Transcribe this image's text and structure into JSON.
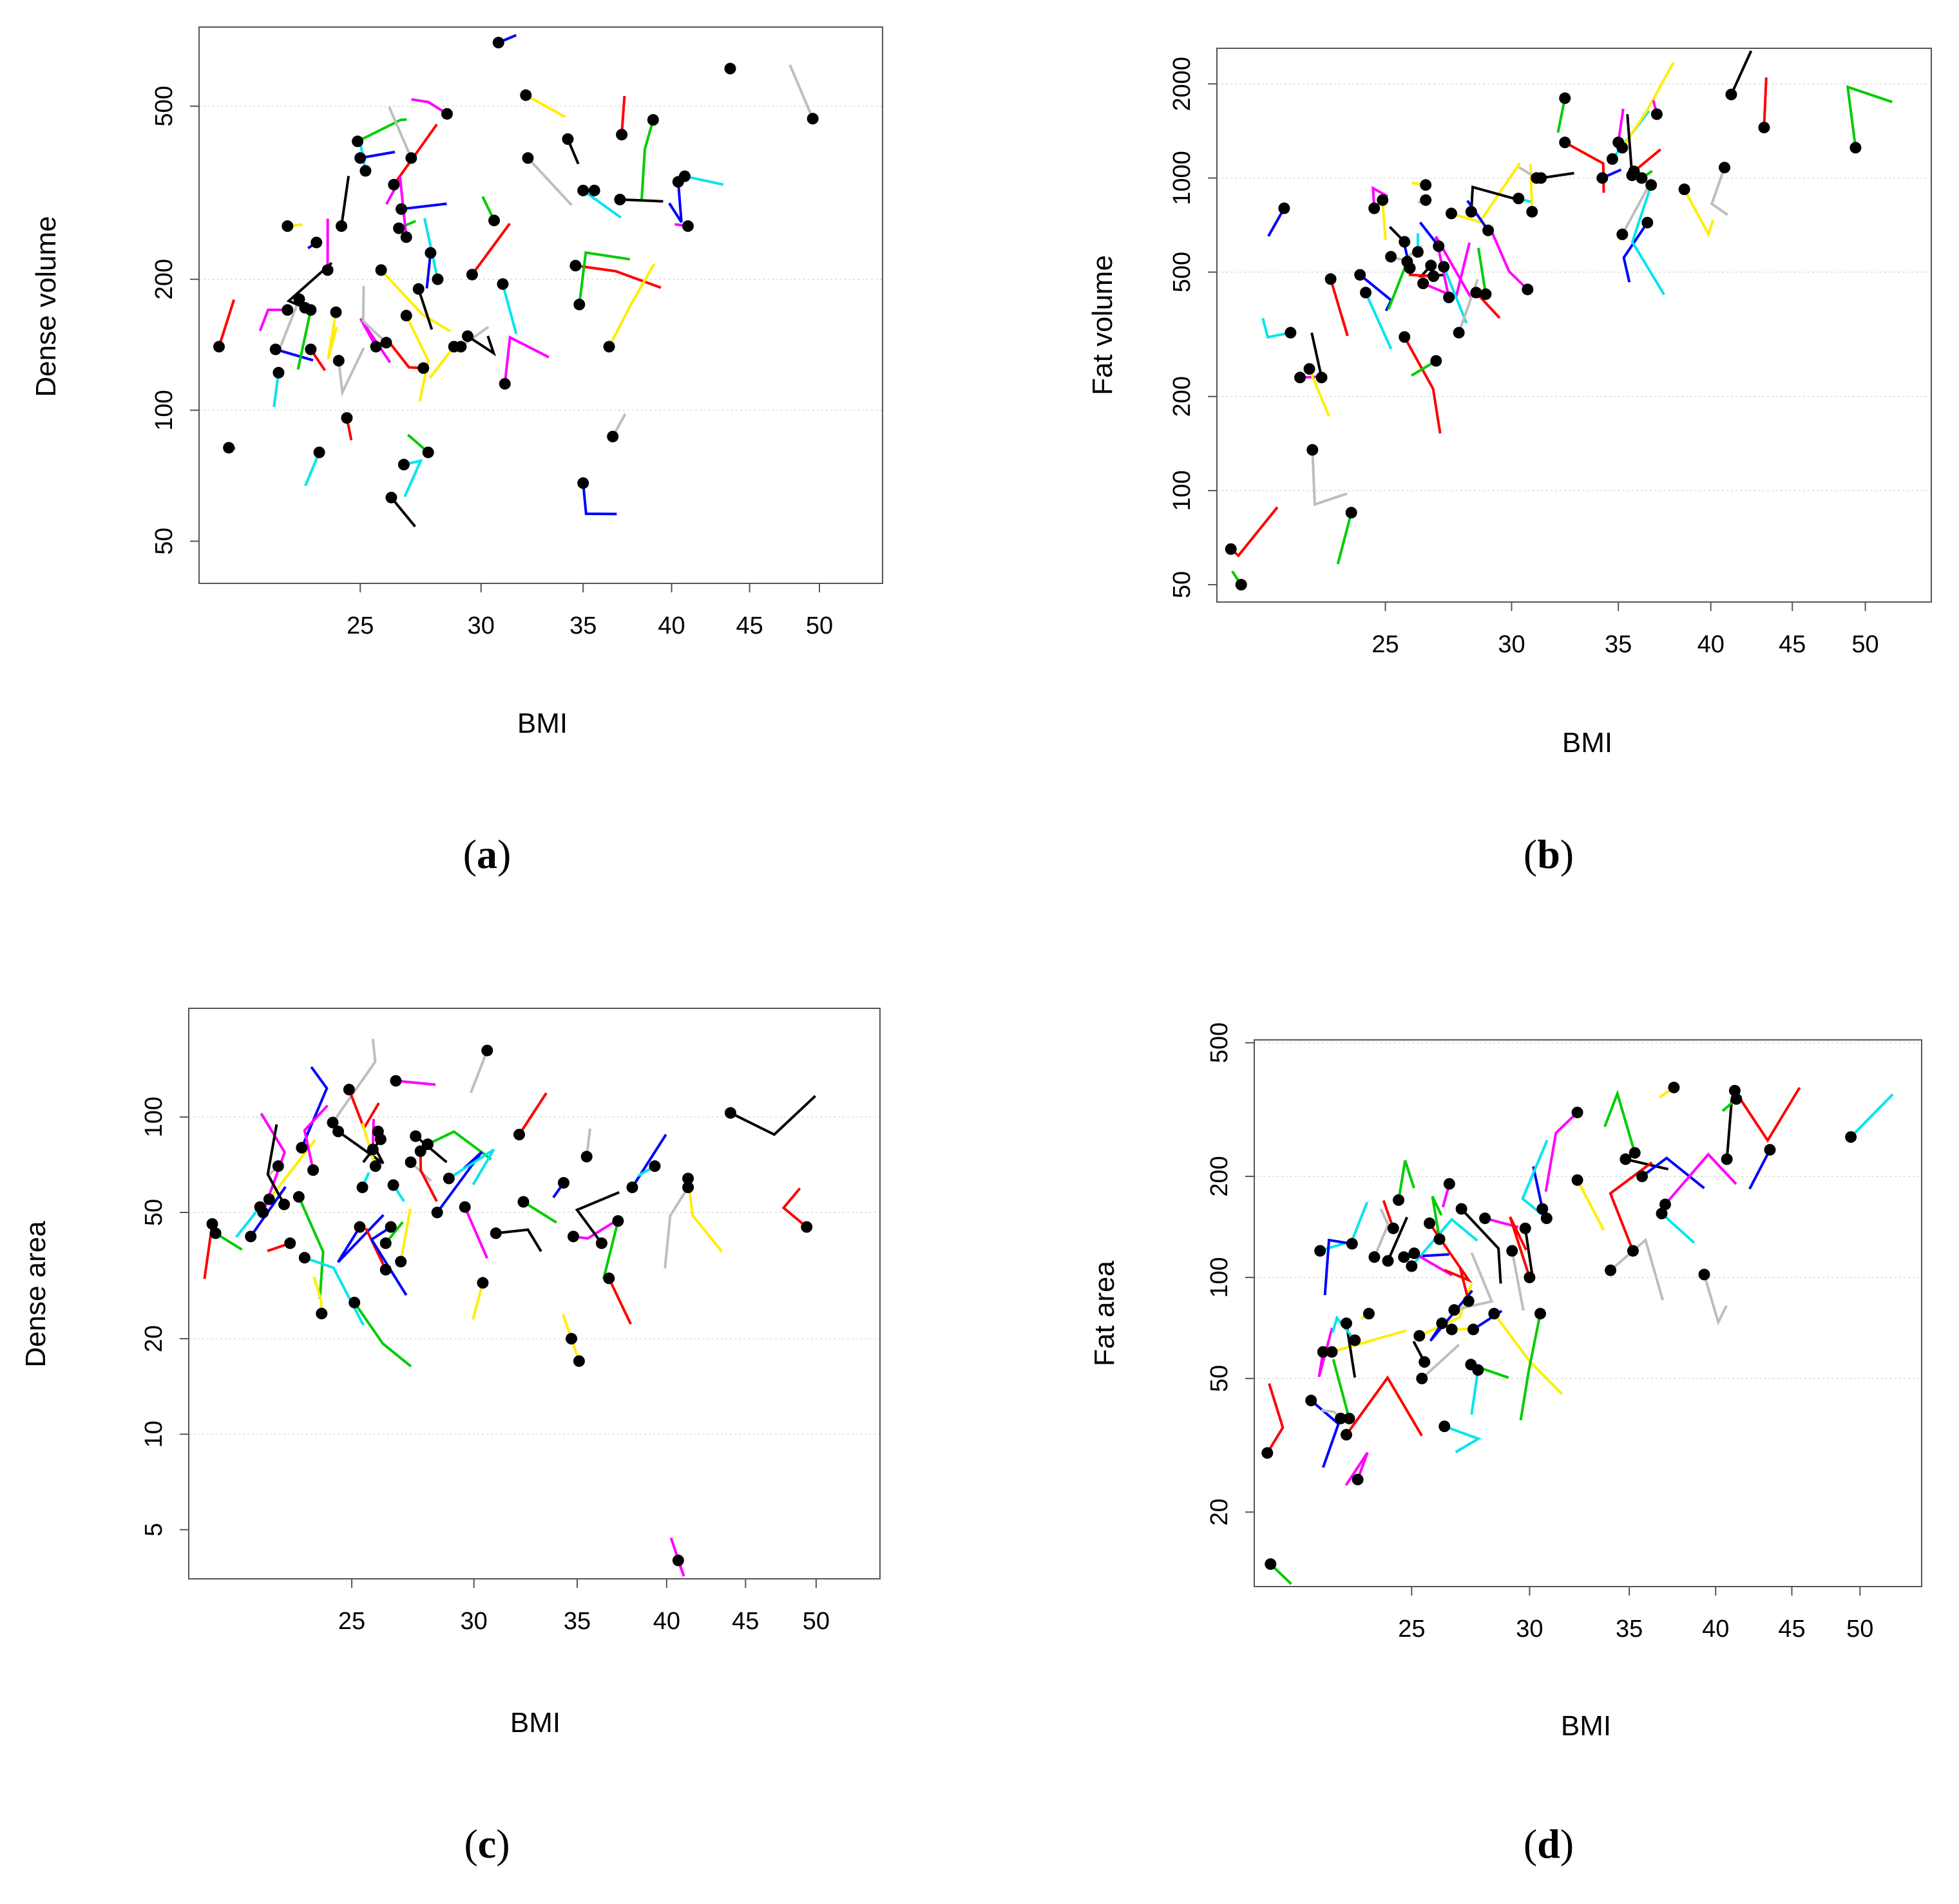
{
  "figure": {
    "panels": [
      "(a)",
      "(b)",
      "(c)",
      "(d)"
    ]
  },
  "chart_data": [
    {
      "type": "scatter",
      "label_open": "(",
      "label_letter": "a",
      "label_close": ")",
      "xlabel": "BMI",
      "ylabel": "Dense volume",
      "xscale": "log",
      "yscale": "log",
      "xlim": [
        19.6,
        55
      ],
      "ylim": [
        40,
        760
      ],
      "xticks": [
        25,
        30,
        35,
        40,
        45,
        50
      ],
      "yticks": [
        50,
        100,
        200,
        500
      ],
      "grid": true,
      "points": [
        [
          20.2,
          140
        ],
        [
          20.5,
          82
        ],
        [
          22.0,
          138
        ],
        [
          22.1,
          122
        ],
        [
          22.4,
          170
        ],
        [
          22.4,
          265
        ],
        [
          22.8,
          180
        ],
        [
          23.0,
          172
        ],
        [
          23.2,
          138
        ],
        [
          23.2,
          170
        ],
        [
          23.4,
          243
        ],
        [
          23.5,
          80
        ],
        [
          23.8,
          210
        ],
        [
          24.1,
          168
        ],
        [
          24.2,
          130
        ],
        [
          24.3,
          265
        ],
        [
          24.5,
          96
        ],
        [
          24.9,
          415
        ],
        [
          25.0,
          380
        ],
        [
          25.2,
          355
        ],
        [
          25.6,
          140
        ],
        [
          25.8,
          210
        ],
        [
          26.0,
          143
        ],
        [
          26.2,
          63
        ],
        [
          26.3,
          330
        ],
        [
          26.5,
          262
        ],
        [
          26.6,
          290
        ],
        [
          26.7,
          75
        ],
        [
          26.8,
          250
        ],
        [
          26.8,
          165
        ],
        [
          27.0,
          380
        ],
        [
          27.3,
          190
        ],
        [
          27.5,
          125
        ],
        [
          27.7,
          80
        ],
        [
          27.8,
          230
        ],
        [
          28.1,
          200
        ],
        [
          28.5,
          480
        ],
        [
          28.8,
          140
        ],
        [
          29.1,
          140
        ],
        [
          29.4,
          148
        ],
        [
          29.6,
          205
        ],
        [
          30.6,
          273
        ],
        [
          30.8,
          700
        ],
        [
          31.0,
          195
        ],
        [
          31.1,
          115
        ],
        [
          32.1,
          530
        ],
        [
          32.2,
          380
        ],
        [
          34.2,
          420
        ],
        [
          34.6,
          215
        ],
        [
          34.8,
          175
        ],
        [
          35.0,
          68
        ],
        [
          35.0,
          320
        ],
        [
          35.6,
          320
        ],
        [
          36.4,
          140
        ],
        [
          36.6,
          87
        ],
        [
          37.0,
          305
        ],
        [
          37.1,
          430
        ],
        [
          38.9,
          465
        ],
        [
          40.4,
          335
        ],
        [
          40.8,
          345
        ],
        [
          41.0,
          265
        ],
        [
          43.7,
          610
        ],
        [
          49.5,
          468
        ]
      ]
    },
    {
      "type": "scatter",
      "label_open": "(",
      "label_letter": "b",
      "label_close": ")",
      "xlabel": "BMI",
      "ylabel": "Fat volume",
      "xscale": "log",
      "yscale": "log",
      "xlim": [
        19.6,
        55
      ],
      "ylim": [
        44,
        2600
      ],
      "xticks": [
        25,
        30,
        35,
        40,
        45,
        50
      ],
      "yticks": [
        50,
        100,
        200,
        500,
        1000,
        2000
      ],
      "grid": true,
      "points": [
        [
          20.0,
          65
        ],
        [
          20.3,
          50
        ],
        [
          21.6,
          800
        ],
        [
          21.8,
          320
        ],
        [
          22.1,
          230
        ],
        [
          22.4,
          245
        ],
        [
          22.5,
          135
        ],
        [
          22.8,
          230
        ],
        [
          23.1,
          475
        ],
        [
          23.8,
          85
        ],
        [
          24.1,
          490
        ],
        [
          24.3,
          430
        ],
        [
          24.6,
          800
        ],
        [
          24.9,
          850
        ],
        [
          25.2,
          560
        ],
        [
          25.7,
          625
        ],
        [
          25.7,
          310
        ],
        [
          25.8,
          540
        ],
        [
          25.9,
          515
        ],
        [
          26.2,
          580
        ],
        [
          26.4,
          460
        ],
        [
          26.5,
          950
        ],
        [
          26.5,
          850
        ],
        [
          26.7,
          525
        ],
        [
          26.8,
          485
        ],
        [
          26.9,
          260
        ],
        [
          27.0,
          605
        ],
        [
          27.2,
          520
        ],
        [
          27.4,
          415
        ],
        [
          27.5,
          770
        ],
        [
          27.8,
          320
        ],
        [
          28.3,
          780
        ],
        [
          28.5,
          430
        ],
        [
          28.9,
          425
        ],
        [
          29.0,
          680
        ],
        [
          30.3,
          860
        ],
        [
          30.7,
          440
        ],
        [
          30.9,
          780
        ],
        [
          31.1,
          1000
        ],
        [
          31.3,
          1000
        ],
        [
          32.4,
          1300
        ],
        [
          32.4,
          1800
        ],
        [
          34.2,
          1000
        ],
        [
          34.7,
          1150
        ],
        [
          35.0,
          1300
        ],
        [
          35.2,
          1250
        ],
        [
          35.2,
          660
        ],
        [
          35.7,
          1020
        ],
        [
          35.8,
          1050
        ],
        [
          36.2,
          1000
        ],
        [
          36.5,
          720
        ],
        [
          36.7,
          950
        ],
        [
          37.0,
          1600
        ],
        [
          38.5,
          920
        ],
        [
          40.8,
          1080
        ],
        [
          41.2,
          1850
        ],
        [
          43.2,
          1450
        ],
        [
          49.3,
          1250
        ]
      ]
    },
    {
      "type": "scatter",
      "label_open": "(",
      "label_letter": "c",
      "label_close": ")",
      "xlabel": "BMI",
      "ylabel": "Dense area",
      "xscale": "log",
      "yscale": "log",
      "xlim": [
        19.6,
        55
      ],
      "ylim": [
        3.5,
        220
      ],
      "xticks": [
        25,
        30,
        35,
        40,
        45,
        50
      ],
      "yticks": [
        5,
        10,
        20,
        50,
        100
      ],
      "grid": true,
      "points": [
        [
          20.3,
          46
        ],
        [
          20.4,
          43
        ],
        [
          21.5,
          42
        ],
        [
          21.8,
          52
        ],
        [
          21.9,
          50
        ],
        [
          22.1,
          55
        ],
        [
          22.4,
          70
        ],
        [
          22.6,
          53
        ],
        [
          22.8,
          40
        ],
        [
          23.1,
          56
        ],
        [
          23.2,
          80
        ],
        [
          23.3,
          36
        ],
        [
          23.6,
          68
        ],
        [
          23.9,
          24
        ],
        [
          24.3,
          96
        ],
        [
          24.5,
          90
        ],
        [
          24.9,
          122
        ],
        [
          25.1,
          26
        ],
        [
          25.3,
          45
        ],
        [
          25.4,
          60
        ],
        [
          25.8,
          79
        ],
        [
          25.9,
          70
        ],
        [
          26.0,
          90
        ],
        [
          26.1,
          85
        ],
        [
          26.3,
          33
        ],
        [
          26.3,
          40
        ],
        [
          26.5,
          45
        ],
        [
          26.6,
          61
        ],
        [
          26.7,
          130
        ],
        [
          26.9,
          35
        ],
        [
          27.3,
          72
        ],
        [
          27.5,
          87
        ],
        [
          27.7,
          78
        ],
        [
          28.0,
          82
        ],
        [
          28.4,
          50
        ],
        [
          28.9,
          64
        ],
        [
          29.6,
          52
        ],
        [
          30.4,
          30
        ],
        [
          30.6,
          162
        ],
        [
          31.0,
          43
        ],
        [
          32.1,
          88
        ],
        [
          32.3,
          54
        ],
        [
          34.3,
          62
        ],
        [
          34.7,
          20
        ],
        [
          34.8,
          42
        ],
        [
          35.1,
          17
        ],
        [
          35.5,
          75
        ],
        [
          36.3,
          40
        ],
        [
          36.7,
          31
        ],
        [
          37.2,
          47
        ],
        [
          38.0,
          60
        ],
        [
          39.3,
          70
        ],
        [
          40.7,
          4
        ],
        [
          41.3,
          64
        ],
        [
          41.3,
          60
        ],
        [
          44.0,
          103
        ],
        [
          49.3,
          45
        ]
      ]
    },
    {
      "type": "scatter",
      "label_open": "(",
      "label_letter": "d",
      "label_close": ")",
      "xlabel": "BMI",
      "ylabel": "Fat area",
      "xscale": "log",
      "yscale": "log",
      "xlim": [
        19.6,
        55
      ],
      "ylim": [
        12,
        510
      ],
      "xticks": [
        25,
        30,
        35,
        40,
        45,
        50
      ],
      "yticks": [
        20,
        50,
        100,
        200,
        500
      ],
      "grid": true,
      "points": [
        [
          20.0,
          30
        ],
        [
          20.1,
          14
        ],
        [
          21.4,
          43
        ],
        [
          21.7,
          120
        ],
        [
          21.8,
          60
        ],
        [
          22.1,
          60
        ],
        [
          22.4,
          38
        ],
        [
          22.6,
          73
        ],
        [
          22.6,
          34
        ],
        [
          22.7,
          38
        ],
        [
          22.8,
          126
        ],
        [
          22.9,
          65
        ],
        [
          23.0,
          25
        ],
        [
          23.4,
          78
        ],
        [
          23.6,
          115
        ],
        [
          24.1,
          112
        ],
        [
          24.3,
          140
        ],
        [
          24.5,
          170
        ],
        [
          24.7,
          115
        ],
        [
          25.0,
          108
        ],
        [
          25.1,
          118
        ],
        [
          25.3,
          67
        ],
        [
          25.4,
          50
        ],
        [
          25.5,
          56
        ],
        [
          25.7,
          145
        ],
        [
          26.1,
          130
        ],
        [
          26.2,
          73
        ],
        [
          26.3,
          36
        ],
        [
          26.5,
          190
        ],
        [
          26.6,
          70
        ],
        [
          26.7,
          80
        ],
        [
          27.0,
          160
        ],
        [
          27.3,
          85
        ],
        [
          27.4,
          55
        ],
        [
          27.5,
          70
        ],
        [
          27.7,
          53
        ],
        [
          28.0,
          150
        ],
        [
          28.4,
          78
        ],
        [
          29.2,
          120
        ],
        [
          29.8,
          140
        ],
        [
          30.0,
          100
        ],
        [
          30.5,
          78
        ],
        [
          30.6,
          160
        ],
        [
          30.8,
          150
        ],
        [
          32.3,
          310
        ],
        [
          32.3,
          195
        ],
        [
          34.0,
          105
        ],
        [
          34.8,
          225
        ],
        [
          35.2,
          120
        ],
        [
          35.3,
          235
        ],
        [
          35.7,
          200
        ],
        [
          36.8,
          155
        ],
        [
          37.0,
          165
        ],
        [
          37.5,
          368
        ],
        [
          39.3,
          102
        ],
        [
          40.7,
          225
        ],
        [
          41.2,
          360
        ],
        [
          41.3,
          340
        ],
        [
          43.5,
          240
        ],
        [
          49.3,
          262
        ]
      ]
    }
  ]
}
